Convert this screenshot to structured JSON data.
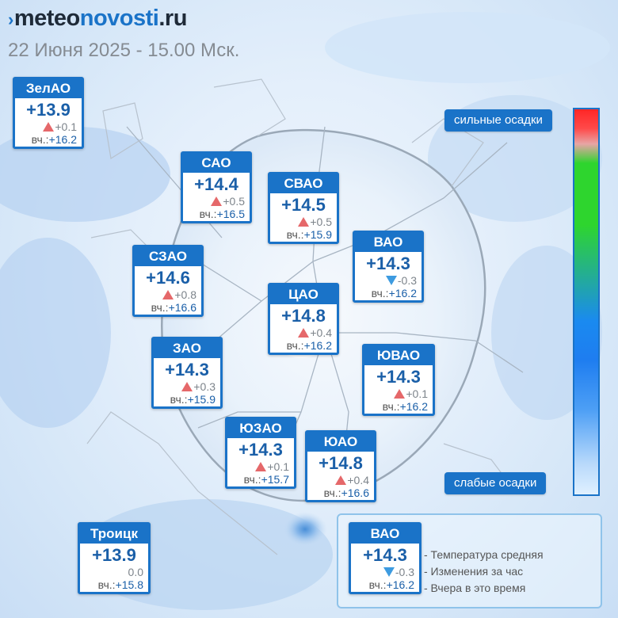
{
  "header": {
    "logo_prefix": "›",
    "logo_meteo": "meteo",
    "logo_novosti": "novosti",
    "logo_ru": ".ru",
    "date": "22 Июня 2025 - 15.00 Мск."
  },
  "yesterday_prefix": "вч.:",
  "colors": {
    "accent": "#1a73c8",
    "up": "#e5686a",
    "down": "#3d9be0"
  },
  "districts": [
    {
      "name": "ЗелАО",
      "temp": "+13.9",
      "change": "+0.1",
      "dir": "up",
      "yesterday": "+16.2"
    },
    {
      "name": "САО",
      "temp": "+14.4",
      "change": "+0.5",
      "dir": "up",
      "yesterday": "+16.5"
    },
    {
      "name": "СВАО",
      "temp": "+14.5",
      "change": "+0.5",
      "dir": "up",
      "yesterday": "+15.9"
    },
    {
      "name": "ВАО",
      "temp": "+14.3",
      "change": "-0.3",
      "dir": "down",
      "yesterday": "+16.2"
    },
    {
      "name": "СЗАО",
      "temp": "+14.6",
      "change": "+0.8",
      "dir": "up",
      "yesterday": "+16.6"
    },
    {
      "name": "ЦАО",
      "temp": "+14.8",
      "change": "+0.4",
      "dir": "up",
      "yesterday": "+16.2"
    },
    {
      "name": "ЗАО",
      "temp": "+14.3",
      "change": "+0.3",
      "dir": "up",
      "yesterday": "+15.9"
    },
    {
      "name": "ЮВАО",
      "temp": "+14.3",
      "change": "+0.1",
      "dir": "up",
      "yesterday": "+16.2"
    },
    {
      "name": "ЮЗАО",
      "temp": "+14.3",
      "change": "+0.1",
      "dir": "up",
      "yesterday": "+15.7"
    },
    {
      "name": "ЮАО",
      "temp": "+14.8",
      "change": "+0.4",
      "dir": "up",
      "yesterday": "+16.6"
    },
    {
      "name": "Троицк",
      "temp": "+13.9",
      "change": "0.0",
      "dir": "none",
      "yesterday": "+15.8"
    }
  ],
  "scale": {
    "top_label": "сильные осадки",
    "bottom_label": "слабые осадки"
  },
  "legend": {
    "sample": {
      "name": "ВАО",
      "temp": "+14.3",
      "change": "-0.3",
      "dir": "down",
      "yesterday": "+16.2"
    },
    "items": [
      "- Температура средняя",
      "- Изменения за час",
      "- Вчера в это время"
    ]
  }
}
